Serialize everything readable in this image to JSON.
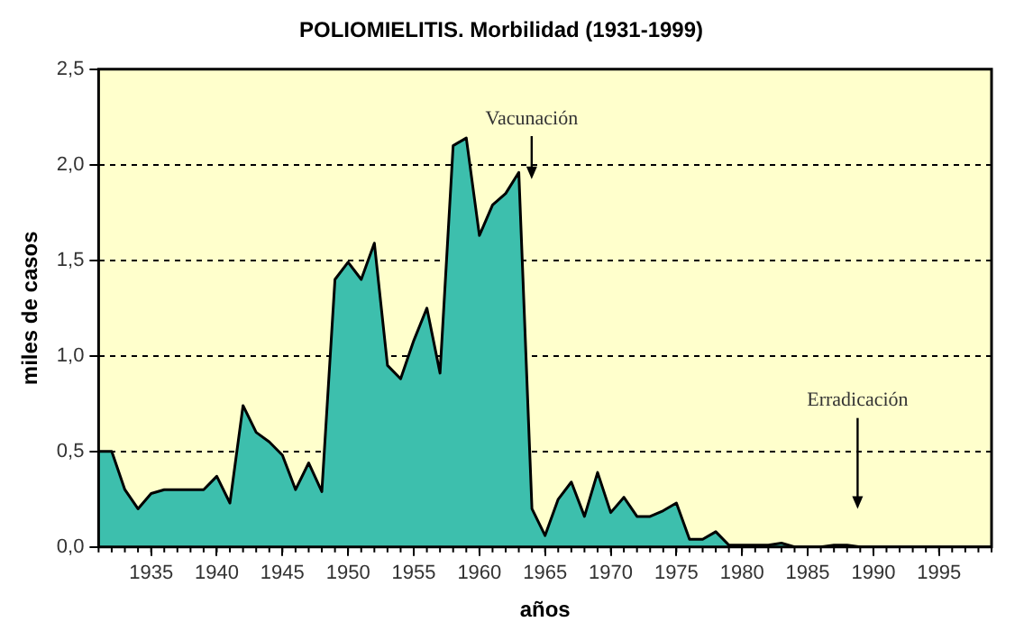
{
  "chart_data": {
    "type": "area",
    "title": "POLIOMIELITIS. Morbilidad (1931-1999)",
    "xlabel": "años",
    "ylabel": "miles de casos",
    "x": [
      1931,
      1932,
      1933,
      1934,
      1935,
      1936,
      1937,
      1938,
      1939,
      1940,
      1941,
      1942,
      1943,
      1944,
      1945,
      1946,
      1947,
      1948,
      1949,
      1950,
      1951,
      1952,
      1953,
      1954,
      1955,
      1956,
      1957,
      1958,
      1959,
      1960,
      1961,
      1962,
      1963,
      1964,
      1965,
      1966,
      1967,
      1968,
      1969,
      1970,
      1971,
      1972,
      1973,
      1974,
      1975,
      1976,
      1977,
      1978,
      1979,
      1980,
      1981,
      1982,
      1983,
      1984,
      1985,
      1986,
      1987,
      1988,
      1989,
      1990,
      1991,
      1992,
      1993,
      1994,
      1995,
      1996,
      1997,
      1998,
      1999
    ],
    "series": [
      {
        "color": "#3dbfad",
        "values": [
          0.5,
          0.5,
          0.3,
          0.2,
          0.28,
          0.3,
          0.3,
          0.3,
          0.3,
          0.37,
          0.23,
          0.74,
          0.6,
          0.55,
          0.48,
          0.3,
          0.44,
          0.29,
          1.4,
          1.49,
          1.4,
          1.59,
          0.95,
          0.88,
          1.08,
          1.25,
          0.91,
          2.1,
          2.14,
          1.63,
          1.79,
          1.85,
          1.96,
          0.2,
          0.06,
          0.25,
          0.34,
          0.16,
          0.39,
          0.18,
          0.26,
          0.16,
          0.16,
          0.19,
          0.23,
          0.04,
          0.04,
          0.08,
          0.01,
          0.01,
          0.01,
          0.01,
          0.02,
          0,
          0,
          0,
          0.01,
          0.01,
          0,
          0,
          0,
          0,
          0,
          0,
          0,
          0,
          0,
          0,
          0
        ]
      }
    ],
    "xlim": [
      1931,
      1999
    ],
    "xticks": [
      1935,
      1940,
      1945,
      1950,
      1955,
      1960,
      1965,
      1970,
      1975,
      1980,
      1985,
      1990,
      1995
    ],
    "ylim": [
      0,
      2.5
    ],
    "yticks": [
      {
        "value": 0,
        "label": "0,0"
      },
      {
        "value": 0.5,
        "label": "0,5"
      },
      {
        "value": 1,
        "label": "1,0"
      },
      {
        "value": 1.5,
        "label": "1,5"
      },
      {
        "value": 2,
        "label": "2,0"
      },
      {
        "value": 2.5,
        "label": "2,5"
      }
    ],
    "grid": "y",
    "legend": false,
    "marker": "none",
    "annotations": [
      "Vacunación",
      "Erradicación"
    ]
  }
}
